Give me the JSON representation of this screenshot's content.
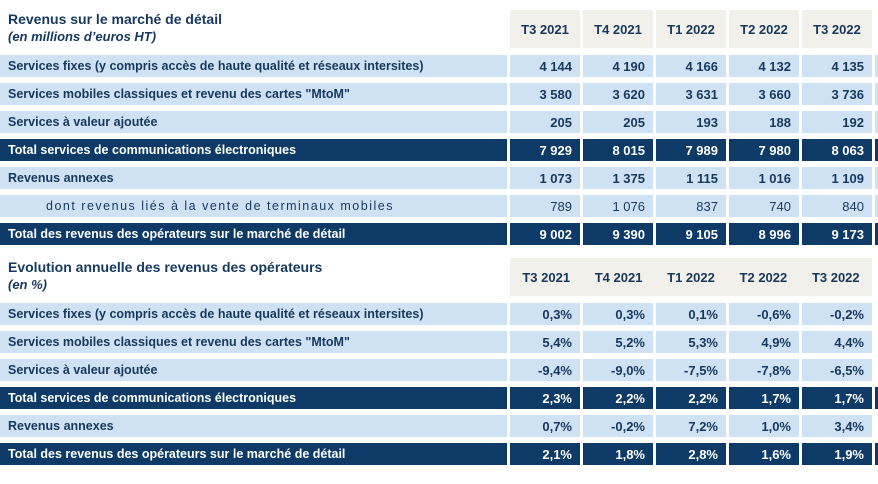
{
  "colors": {
    "navy": "#0d3a66",
    "light_blue": "#cfe2f4",
    "header_bg": "#f2f0ea",
    "text_navy": "#17375d",
    "white_text": "#ffffff"
  },
  "columns": [
    "T3 2021",
    "T4 2021",
    "T1 2022",
    "T2 2022",
    "T3 2022"
  ],
  "table1": {
    "title": "Revenus sur le marché de détail",
    "subtitle": "(en millions d’euros HT)",
    "rows": [
      {
        "label": "Services fixes (y compris accès de haute qualité et réseaux intersites)",
        "values": [
          "4 144",
          "4 190",
          "4 166",
          "4 132",
          "4 135"
        ]
      },
      {
        "label": "Services mobiles classiques et revenu des cartes \"MtoM\"",
        "values": [
          "3 580",
          "3 620",
          "3 631",
          "3 660",
          "3 736"
        ]
      },
      {
        "label": "Services à valeur ajoutée",
        "values": [
          "205",
          "205",
          "193",
          "188",
          "192"
        ]
      },
      {
        "label": "Total services de communications électroniques",
        "values": [
          "7 929",
          "8 015",
          "7 989",
          "7 980",
          "8 063"
        ]
      },
      {
        "label": "Revenus annexes",
        "values": [
          "1 073",
          "1 375",
          "1 115",
          "1 016",
          "1 109"
        ]
      },
      {
        "label": "dont revenus liés à la vente de terminaux mobiles",
        "values": [
          "789",
          "1 076",
          "837",
          "740",
          "840"
        ]
      },
      {
        "label": "Total des revenus des opérateurs sur le marché de détail",
        "values": [
          "9 002",
          "9 390",
          "9 105",
          "8 996",
          "9 173"
        ]
      }
    ]
  },
  "table2": {
    "title": "Evolution annuelle des revenus des opérateurs",
    "subtitle": "(en %)",
    "rows": [
      {
        "label": "Services fixes (y compris accès de haute qualité et réseaux intersites)",
        "values": [
          "0,3%",
          "0,3%",
          "0,1%",
          "-0,6%",
          "-0,2%"
        ]
      },
      {
        "label": "Services mobiles classiques et revenu des cartes \"MtoM\"",
        "values": [
          "5,4%",
          "5,2%",
          "5,3%",
          "4,9%",
          "4,4%"
        ]
      },
      {
        "label": "Services à valeur ajoutée",
        "values": [
          "-9,4%",
          "-9,0%",
          "-7,5%",
          "-7,8%",
          "-6,5%"
        ]
      },
      {
        "label": "Total services de communications électroniques",
        "values": [
          "2,3%",
          "2,2%",
          "2,2%",
          "1,7%",
          "1,7%"
        ]
      },
      {
        "label": "Revenus annexes",
        "values": [
          "0,7%",
          "-0,2%",
          "7,2%",
          "1,0%",
          "3,4%"
        ]
      },
      {
        "label": "Total des revenus des opérateurs sur le marché de détail",
        "values": [
          "2,1%",
          "1,8%",
          "2,8%",
          "1,6%",
          "1,9%"
        ]
      }
    ]
  }
}
